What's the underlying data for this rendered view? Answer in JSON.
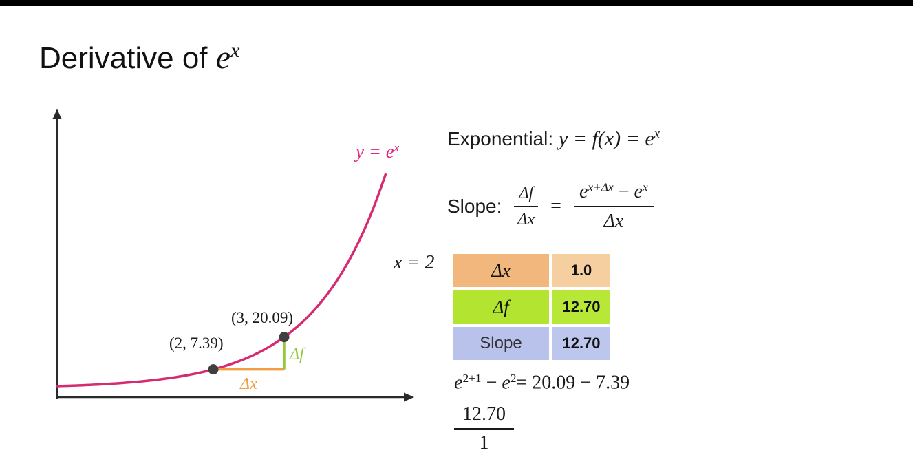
{
  "title": {
    "prefix": "Derivative of ",
    "e": "e",
    "sup": "x"
  },
  "colors": {
    "curve": "#d62a71",
    "curve_label": "#e0257d",
    "delta_x": "#f09d44",
    "delta_f": "#94c83c",
    "point": "#3f3f3f",
    "axis": "#2a2a2a"
  },
  "graph": {
    "curve_label_base": "y = e",
    "curve_label_sup": "x",
    "delta_x_label": "Δx",
    "delta_f_label": "Δf"
  },
  "right": {
    "exponential": {
      "prefix": "Exponential: ",
      "math": "y = f(x) = e",
      "sup": "x"
    },
    "slope": {
      "label": "Slope:",
      "frac1_num": "Δf",
      "frac1_den": "Δx",
      "equals": "=",
      "frac2_e1": "e",
      "frac2_sup1": "x+Δx",
      "frac2_minus": " − ",
      "frac2_e2": "e",
      "frac2_sup2": "x",
      "frac2_den": "Δx"
    },
    "x_label": "x = 2"
  },
  "table": {
    "rows": [
      {
        "label": "Δx",
        "value": "1.0",
        "label_bg": "#f1b77c",
        "value_bg": "#f6cfa0"
      },
      {
        "label": "Δf",
        "value": "12.70",
        "label_bg": "#b2e430",
        "value_bg": "#b7e838"
      },
      {
        "label": "Slope",
        "value": "12.70",
        "label_bg": "#b8c2eb",
        "value_bg": "#bdc7ee"
      }
    ]
  },
  "bottom": {
    "e1": "e",
    "sup1": "2+1",
    "minus": " − ",
    "e2": "e",
    "sup2": "2",
    "rhs": "= 20.09 − 7.39",
    "frac_num": "12.70",
    "frac_den": "1"
  },
  "chart_data": {
    "type": "line",
    "title": "Derivative of e^x",
    "series": [
      {
        "name": "y = e^x",
        "formula": "exp(x)"
      }
    ],
    "x_range": [
      -0.2,
      4.43
    ],
    "points": [
      {
        "x": 2,
        "y": 7.39,
        "label": "(2, 7.39)"
      },
      {
        "x": 3,
        "y": 20.09,
        "label": "(3, 20.09)"
      }
    ],
    "secant": {
      "at_x": 2,
      "dx": 1.0,
      "df": 12.7,
      "slope": 12.7
    },
    "axes": {
      "xlabel": "",
      "ylabel": "",
      "ticks": false,
      "grid": false
    },
    "legend": "none"
  }
}
